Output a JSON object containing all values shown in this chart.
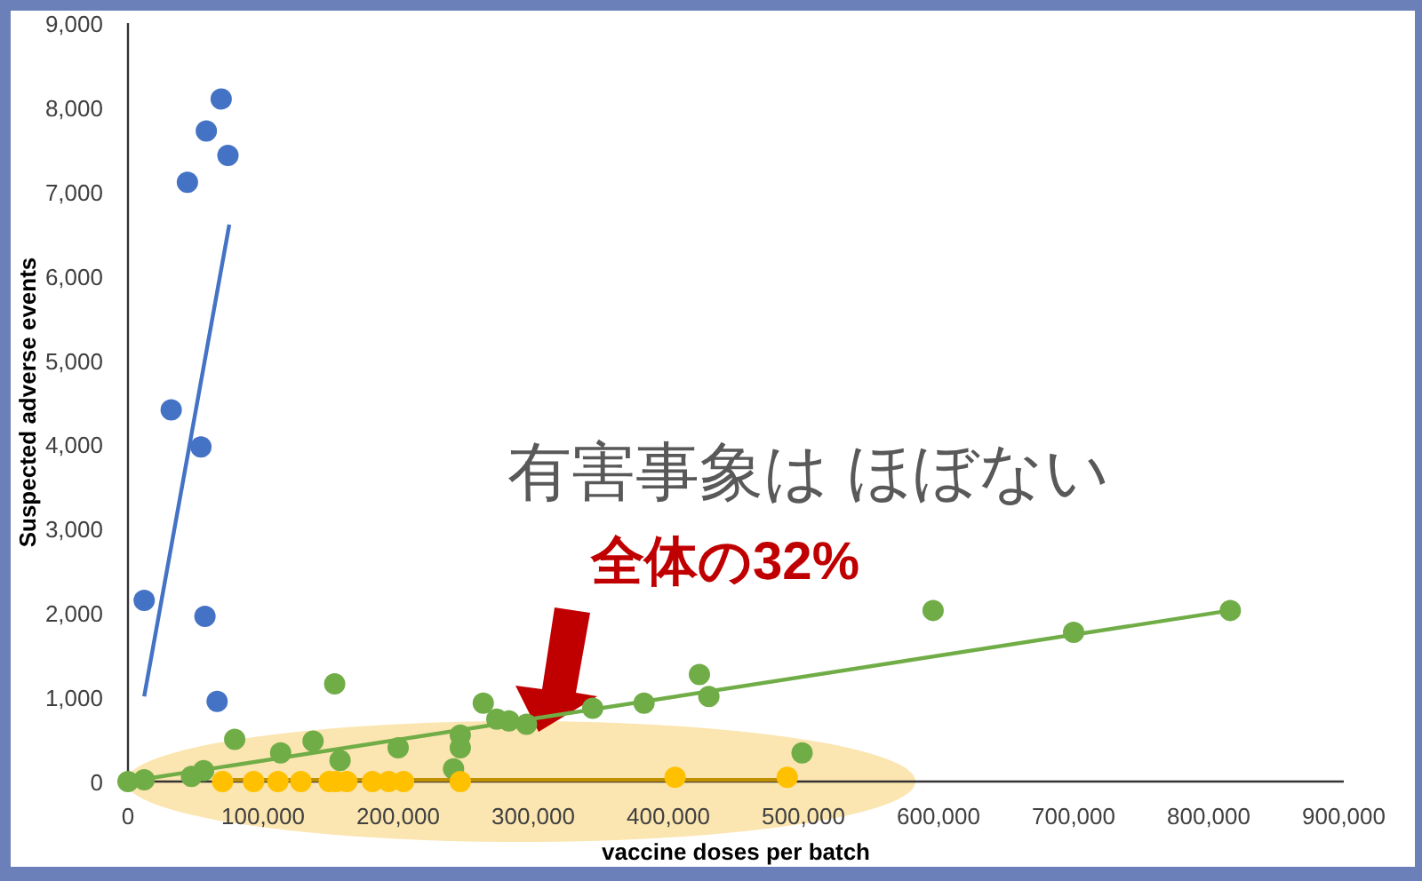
{
  "chart_data": {
    "type": "scatter",
    "xlabel": "vaccine doses per batch",
    "ylabel": "Suspected adverse events",
    "xlim": [
      0,
      900000
    ],
    "ylim": [
      0,
      9000
    ],
    "xticks": [
      0,
      {
        "value": 100000,
        "label": "100,000"
      },
      {
        "value": 200000,
        "label": "200,000"
      },
      {
        "value": 300000,
        "label": "300,000"
      },
      {
        "value": 400000,
        "label": "400,000"
      },
      {
        "value": 500000,
        "label": "500,000"
      },
      {
        "value": 600000,
        "label": "600,000"
      },
      {
        "value": 700000,
        "label": "700,000"
      },
      {
        "value": 800000,
        "label": "800,000"
      },
      {
        "value": 900000,
        "label": "900,000"
      }
    ],
    "yticks": [
      0,
      {
        "value": 1000,
        "label": "1,000"
      },
      {
        "value": 2000,
        "label": "2,000"
      },
      {
        "value": 3000,
        "label": "3,000"
      },
      {
        "value": 4000,
        "label": "4,000"
      },
      {
        "value": 5000,
        "label": "5,000"
      },
      {
        "value": 6000,
        "label": "6,000"
      },
      {
        "value": 7000,
        "label": "7,000"
      },
      {
        "value": 8000,
        "label": "8,000"
      },
      {
        "value": 9000,
        "label": "9,000"
      }
    ],
    "marker": "circle",
    "grid": false,
    "series": [
      {
        "color": "#4472c4",
        "x": [
          12000,
          32000,
          44000,
          54000,
          57000,
          58000,
          66000,
          69000,
          74000
        ],
        "values": [
          2150,
          4410,
          7110,
          3970,
          1960,
          7720,
          950,
          8100,
          7430
        ]
      },
      {
        "type": "line",
        "marker": "none",
        "color": "#4472c4",
        "x": [
          12000,
          75000
        ],
        "values": [
          1010,
          6610
        ]
      },
      {
        "color": "#70ad47",
        "x": [
          0,
          12000,
          47000,
          56000,
          79000,
          113000,
          137000,
          153000,
          157000,
          200000,
          241000,
          246000,
          246000,
          263000,
          273000,
          282000,
          295000,
          344000,
          382000,
          423000,
          430000,
          499000,
          596000,
          700000,
          816000
        ],
        "values": [
          0,
          20,
          60,
          130,
          500,
          340,
          480,
          1160,
          250,
          400,
          150,
          400,
          550,
          930,
          740,
          720,
          680,
          870,
          930,
          1270,
          1010,
          340,
          2030,
          1770,
          2030
        ]
      },
      {
        "type": "line",
        "marker": "none",
        "color": "#70ad47",
        "x": [
          0,
          816000
        ],
        "values": [
          0,
          2030
        ]
      },
      {
        "type": "line",
        "marker": "none",
        "color": "#c09000",
        "x": [
          70000,
          488000
        ],
        "values": [
          20,
          20
        ]
      },
      {
        "color": "#ffc000",
        "x": [
          70000,
          93000,
          111000,
          128000,
          149000,
          154000,
          162000,
          181000,
          193000,
          204000,
          246000,
          405000,
          488000
        ],
        "values": [
          0,
          0,
          0,
          0,
          0,
          0,
          0,
          0,
          0,
          0,
          0,
          50,
          50
        ]
      }
    ],
    "annotations": [
      "有害事象は ほぼない",
      "全体の32%"
    ]
  }
}
